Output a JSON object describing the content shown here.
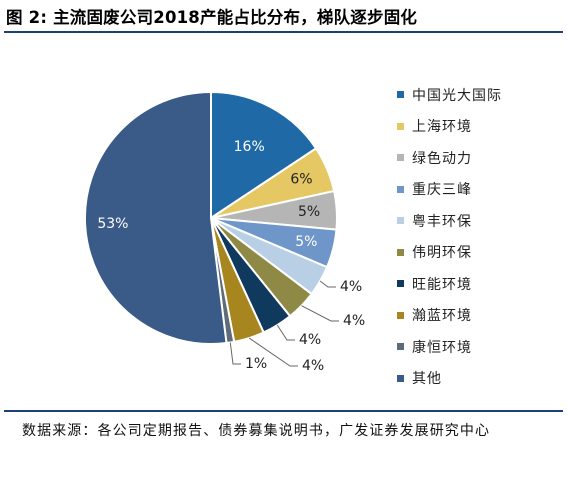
{
  "title": "图 2: 主流固废公司2018产能占比分布，梯队逐步固化",
  "source": "数据来源：各公司定期报告、债券募集说明书，广发证券发展研究中心",
  "chart_data": {
    "type": "pie",
    "start_angle_deg": 90,
    "direction": "clockwise",
    "legend_position": "right",
    "slices": [
      {
        "name": "中国光大国际",
        "value": 16,
        "label": "16%",
        "color": "#1f6aa6",
        "label_inside": true,
        "label_color": "#ffffff"
      },
      {
        "name": "上海环境",
        "value": 6,
        "label": "6%",
        "color": "#e5c764",
        "label_inside": true,
        "label_color": "#222222"
      },
      {
        "name": "绿色动力",
        "value": 5,
        "label": "5%",
        "color": "#b5b5b5",
        "label_inside": true,
        "label_color": "#222222"
      },
      {
        "name": "重庆三峰",
        "value": 5,
        "label": "5%",
        "color": "#6f96c9",
        "label_inside": true,
        "label_color": "#ffffff"
      },
      {
        "name": "粤丰环保",
        "value": 4,
        "label": "4%",
        "color": "#b8cfe6",
        "label_inside": false,
        "label_color": "#222222"
      },
      {
        "name": "伟明环保",
        "value": 4,
        "label": "4%",
        "color": "#8e8a45",
        "label_inside": false,
        "label_color": "#222222"
      },
      {
        "name": "旺能环境",
        "value": 4,
        "label": "4%",
        "color": "#10395e",
        "label_inside": false,
        "label_color": "#222222"
      },
      {
        "name": "瀚蓝环境",
        "value": 4,
        "label": "4%",
        "color": "#a8861f",
        "label_inside": false,
        "label_color": "#222222"
      },
      {
        "name": "康恒环境",
        "value": 1,
        "label": "1%",
        "color": "#5e6b78",
        "label_inside": false,
        "label_color": "#222222"
      },
      {
        "name": "其他",
        "value": 53,
        "label": "53%",
        "color": "#3a5a88",
        "label_inside": true,
        "label_color": "#ffffff"
      }
    ]
  }
}
